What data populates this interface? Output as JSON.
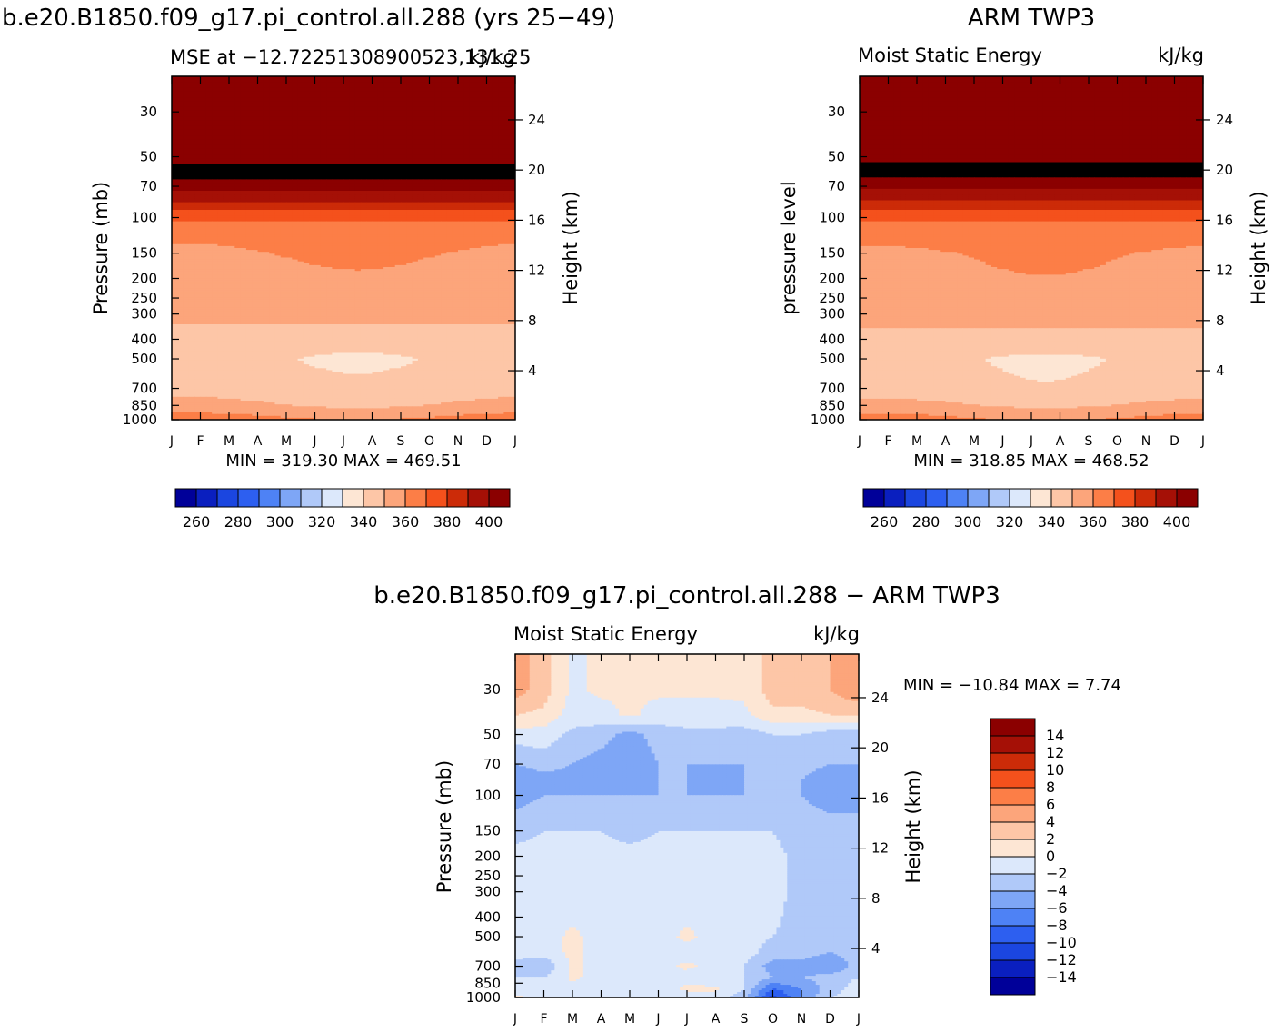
{
  "palette": {
    "mse": [
      "#000099",
      "#0a1fbf",
      "#1b46e0",
      "#2d5ff0",
      "#4e82f5",
      "#7ea6f6",
      "#b0c9f9",
      "#dce8fb",
      "#fde6d4",
      "#fdc6a7",
      "#fca57b",
      "#fc7e47",
      "#f4511c",
      "#cc2b08",
      "#a51006",
      "#8b0000"
    ],
    "diff": [
      "#000099",
      "#0a1fbf",
      "#1b46e0",
      "#2d5ff0",
      "#4e82f5",
      "#7ea6f6",
      "#b0c9f9",
      "#dce8fb",
      "#fde6d4",
      "#fdc6a7",
      "#fca57b",
      "#fc7e47",
      "#f4511c",
      "#cc2b08",
      "#a51006",
      "#8b0000"
    ]
  },
  "chart_data": [
    {
      "type": "heatmap",
      "id": "model",
      "title": "b.e20.B1850.f09_g17.pi_control.all.288 (yrs 25−49)",
      "subtitle_left": "MSE at −12.72251308900523,131.25",
      "subtitle_right": "kJ/kg",
      "ylabel": "Pressure (mb)",
      "ylabel_right": "Height (km)",
      "x": [
        "J",
        "F",
        "M",
        "A",
        "M",
        "J",
        "J",
        "A",
        "S",
        "O",
        "N",
        "D",
        "J"
      ],
      "y_ticks": [
        "30",
        "50",
        "70",
        "100",
        "150",
        "200",
        "250",
        "300",
        "400",
        "500",
        "700",
        "850",
        "1000"
      ],
      "y_right_ticks": [
        "24",
        "20",
        "16",
        "12",
        "8",
        "4"
      ],
      "min_max": "MIN = 319.30 MAX = 469.51",
      "colorbar_ticks": [
        "260",
        "280",
        "300",
        "320",
        "340",
        "360",
        "380",
        "400"
      ],
      "levels": [
        255,
        260,
        265,
        270,
        280,
        290,
        300,
        310,
        320,
        330,
        340,
        350,
        360,
        370,
        380,
        390,
        400
      ],
      "profile": [
        {
          "p": 30,
          "v": 470
        },
        {
          "p": 50,
          "v": 405
        },
        {
          "p": 60,
          "v": 395
        },
        {
          "p": 70,
          "v": 385
        },
        {
          "p": 85,
          "v": 368
        },
        {
          "p": 100,
          "v": 352
        },
        {
          "p": 120,
          "v": 343
        },
        {
          "p": 150,
          "v": 340
        },
        {
          "p": 250,
          "v": 336
        },
        {
          "p": 300,
          "v": 333
        },
        {
          "p": 400,
          "v": 326
        },
        {
          "p": 500,
          "v": 321
        },
        {
          "p": 700,
          "v": 324
        },
        {
          "p": 850,
          "v": 331
        },
        {
          "p": 1000,
          "v": 343
        }
      ]
    },
    {
      "type": "heatmap",
      "id": "obs",
      "title": "ARM TWP3",
      "subtitle_left": "Moist Static Energy",
      "subtitle_right": "kJ/kg",
      "ylabel": "pressure level",
      "ylabel_right": "Height (km)",
      "x": [
        "J",
        "F",
        "M",
        "A",
        "M",
        "J",
        "J",
        "A",
        "S",
        "O",
        "N",
        "D",
        "J"
      ],
      "y_ticks": [
        "30",
        "50",
        "70",
        "100",
        "150",
        "200",
        "250",
        "300",
        "400",
        "500",
        "700",
        "850",
        "1000"
      ],
      "y_right_ticks": [
        "24",
        "20",
        "16",
        "12",
        "8",
        "4"
      ],
      "min_max": "MIN = 318.85 MAX = 468.52",
      "colorbar_ticks": [
        "260",
        "280",
        "300",
        "320",
        "340",
        "360",
        "380",
        "400"
      ],
      "levels": [
        255,
        260,
        265,
        270,
        280,
        290,
        300,
        310,
        320,
        330,
        340,
        350,
        360,
        370,
        380,
        390,
        400
      ],
      "profile": [
        {
          "p": 30,
          "v": 469
        },
        {
          "p": 50,
          "v": 404
        },
        {
          "p": 60,
          "v": 393
        },
        {
          "p": 70,
          "v": 383
        },
        {
          "p": 85,
          "v": 367
        },
        {
          "p": 100,
          "v": 352
        },
        {
          "p": 120,
          "v": 344
        },
        {
          "p": 150,
          "v": 340
        },
        {
          "p": 250,
          "v": 337
        },
        {
          "p": 300,
          "v": 334
        },
        {
          "p": 400,
          "v": 327
        },
        {
          "p": 500,
          "v": 321
        },
        {
          "p": 700,
          "v": 323
        },
        {
          "p": 850,
          "v": 331
        },
        {
          "p": 1000,
          "v": 342
        }
      ]
    },
    {
      "type": "heatmap",
      "id": "diff",
      "title": "b.e20.B1850.f09_g17.pi_control.all.288 − ARM TWP3",
      "subtitle_left": "Moist Static Energy",
      "subtitle_right": "kJ/kg",
      "ylabel": "Pressure (mb)",
      "ylabel_right": "Height (km)",
      "x": [
        "J",
        "F",
        "M",
        "A",
        "M",
        "J",
        "J",
        "A",
        "S",
        "O",
        "N",
        "D",
        "J"
      ],
      "y_ticks": [
        "30",
        "50",
        "70",
        "100",
        "150",
        "200",
        "250",
        "300",
        "400",
        "500",
        "700",
        "850",
        "1000"
      ],
      "y_right_ticks": [
        "24",
        "20",
        "16",
        "12",
        "8",
        "4"
      ],
      "min_max": "MIN = −10.84 MAX =    7.74",
      "colorbar_ticks": [
        "14",
        "12",
        "10",
        "8",
        "6",
        "4",
        "2",
        "0",
        "−2",
        "−4",
        "−6",
        "−8",
        "−10",
        "−12",
        "−14"
      ],
      "levels": [
        -14,
        -12,
        -10,
        -8,
        -6,
        -4,
        -2,
        0,
        2,
        4,
        6,
        8,
        10,
        12,
        14
      ],
      "grid": {
        "p": [
          30,
          40,
          50,
          70,
          85,
          100,
          150,
          200,
          300,
          500,
          600,
          700,
          800,
          900,
          1000
        ],
        "months": [
          "J",
          "F",
          "M",
          "A",
          "M",
          "J",
          "J",
          "A",
          "S",
          "O",
          "N",
          "D",
          "J"
        ],
        "values": [
          [
            5,
            3,
            -0.5,
            0.5,
            0.5,
            0.5,
            0.5,
            0.5,
            0.5,
            3,
            3,
            4,
            6
          ],
          [
            2,
            1.5,
            -1,
            -1,
            0.5,
            -1,
            -1,
            -1,
            -0.5,
            1.5,
            1.5,
            2,
            2
          ],
          [
            -1,
            -1,
            -2.5,
            -3,
            -5,
            -3,
            -2.5,
            -2.5,
            -3,
            -2,
            -2,
            -3,
            -3
          ],
          [
            -4,
            -3,
            -4,
            -5,
            -6,
            -4,
            -4,
            -4,
            -4,
            -3,
            -3,
            -4,
            -4
          ],
          [
            -6,
            -5,
            -5,
            -5,
            -6,
            -4,
            -4,
            -6,
            -4,
            -4,
            -4,
            -6,
            -6
          ],
          [
            -5,
            -4,
            -4,
            -4,
            -4,
            -4,
            -4,
            -4,
            -4,
            -4,
            -4,
            -5,
            -5
          ],
          [
            -2.5,
            -2,
            -2,
            -2,
            -2.5,
            -2,
            -2,
            -2,
            -2,
            -2,
            -3,
            -3,
            -3
          ],
          [
            -1.5,
            -1.5,
            -1.5,
            -1.5,
            -1.5,
            -1.5,
            -1.5,
            -1.5,
            -1.5,
            -1.5,
            -2.5,
            -3,
            -3
          ],
          [
            -1.5,
            -1.5,
            -1.5,
            -1.5,
            -1.5,
            -1.5,
            -1.5,
            -1.5,
            -1.5,
            -1.5,
            -2.5,
            -3,
            -3
          ],
          [
            -1,
            -1,
            0.5,
            -1,
            -1,
            -1,
            0.5,
            -1,
            -1,
            -2,
            -2.5,
            -2,
            -3
          ],
          [
            -1,
            -1,
            0.5,
            -1,
            -1,
            -1,
            -1,
            -1,
            -1,
            -3,
            -3,
            -4,
            -3
          ],
          [
            -3,
            -4,
            0.5,
            -1,
            -1,
            -1,
            0.5,
            -1,
            -2,
            -5,
            -5,
            -6,
            -3
          ],
          [
            -2,
            -2,
            0.5,
            -1,
            -1,
            -1,
            -1,
            -2,
            -2,
            -4,
            -4,
            -3,
            -2
          ],
          [
            -1,
            -1,
            -1,
            -1,
            -1,
            -1,
            0.5,
            0.5,
            -2,
            -8,
            -6,
            -3,
            -1
          ],
          [
            0.5,
            -1,
            -1,
            -1,
            -1,
            -1,
            -1,
            -1,
            -3,
            -11,
            -6,
            -2,
            -1
          ]
        ]
      }
    }
  ]
}
